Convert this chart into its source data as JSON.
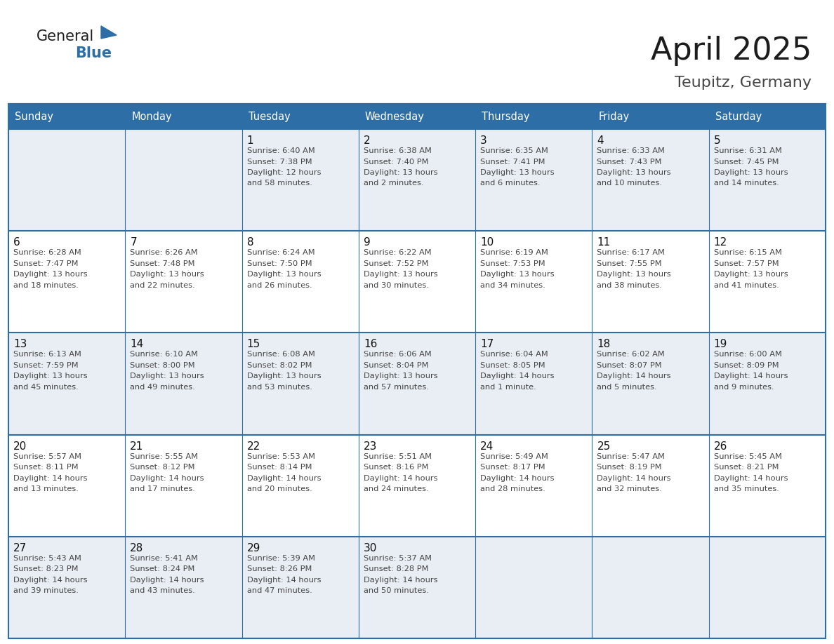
{
  "title": "April 2025",
  "subtitle": "Teupitz, Germany",
  "header_bg_color": "#2E6EA6",
  "header_text_color": "#FFFFFF",
  "cell_bg_light": "#E8EEF4",
  "cell_bg_white": "#FFFFFF",
  "cell_text_color": "#444444",
  "day_number_color": "#111111",
  "grid_line_color": "#2E6EA6",
  "title_color": "#1a1a1a",
  "subtitle_color": "#444444",
  "days_of_week": [
    "Sunday",
    "Monday",
    "Tuesday",
    "Wednesday",
    "Thursday",
    "Friday",
    "Saturday"
  ],
  "calendar": [
    [
      {
        "day": "",
        "info": ""
      },
      {
        "day": "",
        "info": ""
      },
      {
        "day": "1",
        "info": "Sunrise: 6:40 AM\nSunset: 7:38 PM\nDaylight: 12 hours\nand 58 minutes."
      },
      {
        "day": "2",
        "info": "Sunrise: 6:38 AM\nSunset: 7:40 PM\nDaylight: 13 hours\nand 2 minutes."
      },
      {
        "day": "3",
        "info": "Sunrise: 6:35 AM\nSunset: 7:41 PM\nDaylight: 13 hours\nand 6 minutes."
      },
      {
        "day": "4",
        "info": "Sunrise: 6:33 AM\nSunset: 7:43 PM\nDaylight: 13 hours\nand 10 minutes."
      },
      {
        "day": "5",
        "info": "Sunrise: 6:31 AM\nSunset: 7:45 PM\nDaylight: 13 hours\nand 14 minutes."
      }
    ],
    [
      {
        "day": "6",
        "info": "Sunrise: 6:28 AM\nSunset: 7:47 PM\nDaylight: 13 hours\nand 18 minutes."
      },
      {
        "day": "7",
        "info": "Sunrise: 6:26 AM\nSunset: 7:48 PM\nDaylight: 13 hours\nand 22 minutes."
      },
      {
        "day": "8",
        "info": "Sunrise: 6:24 AM\nSunset: 7:50 PM\nDaylight: 13 hours\nand 26 minutes."
      },
      {
        "day": "9",
        "info": "Sunrise: 6:22 AM\nSunset: 7:52 PM\nDaylight: 13 hours\nand 30 minutes."
      },
      {
        "day": "10",
        "info": "Sunrise: 6:19 AM\nSunset: 7:53 PM\nDaylight: 13 hours\nand 34 minutes."
      },
      {
        "day": "11",
        "info": "Sunrise: 6:17 AM\nSunset: 7:55 PM\nDaylight: 13 hours\nand 38 minutes."
      },
      {
        "day": "12",
        "info": "Sunrise: 6:15 AM\nSunset: 7:57 PM\nDaylight: 13 hours\nand 41 minutes."
      }
    ],
    [
      {
        "day": "13",
        "info": "Sunrise: 6:13 AM\nSunset: 7:59 PM\nDaylight: 13 hours\nand 45 minutes."
      },
      {
        "day": "14",
        "info": "Sunrise: 6:10 AM\nSunset: 8:00 PM\nDaylight: 13 hours\nand 49 minutes."
      },
      {
        "day": "15",
        "info": "Sunrise: 6:08 AM\nSunset: 8:02 PM\nDaylight: 13 hours\nand 53 minutes."
      },
      {
        "day": "16",
        "info": "Sunrise: 6:06 AM\nSunset: 8:04 PM\nDaylight: 13 hours\nand 57 minutes."
      },
      {
        "day": "17",
        "info": "Sunrise: 6:04 AM\nSunset: 8:05 PM\nDaylight: 14 hours\nand 1 minute."
      },
      {
        "day": "18",
        "info": "Sunrise: 6:02 AM\nSunset: 8:07 PM\nDaylight: 14 hours\nand 5 minutes."
      },
      {
        "day": "19",
        "info": "Sunrise: 6:00 AM\nSunset: 8:09 PM\nDaylight: 14 hours\nand 9 minutes."
      }
    ],
    [
      {
        "day": "20",
        "info": "Sunrise: 5:57 AM\nSunset: 8:11 PM\nDaylight: 14 hours\nand 13 minutes."
      },
      {
        "day": "21",
        "info": "Sunrise: 5:55 AM\nSunset: 8:12 PM\nDaylight: 14 hours\nand 17 minutes."
      },
      {
        "day": "22",
        "info": "Sunrise: 5:53 AM\nSunset: 8:14 PM\nDaylight: 14 hours\nand 20 minutes."
      },
      {
        "day": "23",
        "info": "Sunrise: 5:51 AM\nSunset: 8:16 PM\nDaylight: 14 hours\nand 24 minutes."
      },
      {
        "day": "24",
        "info": "Sunrise: 5:49 AM\nSunset: 8:17 PM\nDaylight: 14 hours\nand 28 minutes."
      },
      {
        "day": "25",
        "info": "Sunrise: 5:47 AM\nSunset: 8:19 PM\nDaylight: 14 hours\nand 32 minutes."
      },
      {
        "day": "26",
        "info": "Sunrise: 5:45 AM\nSunset: 8:21 PM\nDaylight: 14 hours\nand 35 minutes."
      }
    ],
    [
      {
        "day": "27",
        "info": "Sunrise: 5:43 AM\nSunset: 8:23 PM\nDaylight: 14 hours\nand 39 minutes."
      },
      {
        "day": "28",
        "info": "Sunrise: 5:41 AM\nSunset: 8:24 PM\nDaylight: 14 hours\nand 43 minutes."
      },
      {
        "day": "29",
        "info": "Sunrise: 5:39 AM\nSunset: 8:26 PM\nDaylight: 14 hours\nand 47 minutes."
      },
      {
        "day": "30",
        "info": "Sunrise: 5:37 AM\nSunset: 8:28 PM\nDaylight: 14 hours\nand 50 minutes."
      },
      {
        "day": "",
        "info": ""
      },
      {
        "day": "",
        "info": ""
      },
      {
        "day": "",
        "info": ""
      }
    ]
  ]
}
